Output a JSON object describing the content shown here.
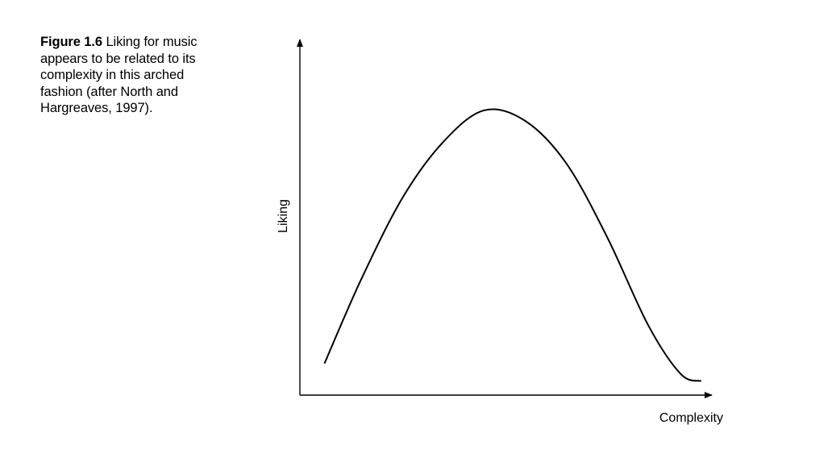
{
  "caption": {
    "label": "Figure 1.6",
    "lines": [
      "Liking for music",
      "appears to be related to its",
      "complexity in this arched",
      "fashion (after North and",
      "Hargreaves, 1997)."
    ]
  },
  "chart_data": {
    "type": "line",
    "xlabel": "Complexity",
    "ylabel": "Liking",
    "xlim": [
      0,
      1
    ],
    "ylim": [
      0,
      1
    ],
    "grid": false,
    "series": [
      {
        "x": [
          0.06,
          0.15,
          0.25,
          0.35,
          0.45,
          0.55,
          0.65,
          0.75,
          0.85,
          0.93,
          0.98
        ],
        "y": [
          0.09,
          0.33,
          0.56,
          0.72,
          0.81,
          0.78,
          0.66,
          0.45,
          0.2,
          0.06,
          0.04
        ],
        "color": "#000000"
      }
    ]
  }
}
